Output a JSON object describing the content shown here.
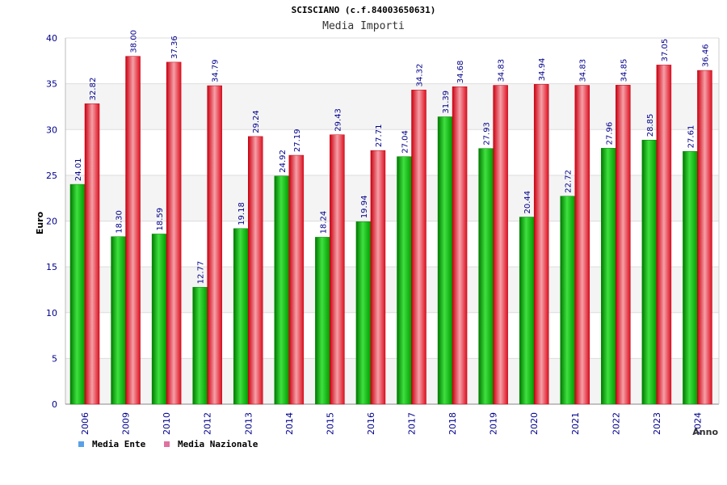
{
  "header": {
    "title": "SCISCIANO (c.f.84003650631)",
    "subtitle": "Media Importi"
  },
  "chart_data": {
    "type": "bar",
    "categories": [
      "2006",
      "2009",
      "2010",
      "2012",
      "2013",
      "2014",
      "2015",
      "2016",
      "2017",
      "2018",
      "2019",
      "2020",
      "2021",
      "2022",
      "2023",
      "2024"
    ],
    "series": [
      {
        "name": "Media Ente",
        "values": [
          24.01,
          18.3,
          18.59,
          12.77,
          19.18,
          24.92,
          18.24,
          19.94,
          27.04,
          31.39,
          27.93,
          20.44,
          22.72,
          27.96,
          28.85,
          27.61
        ],
        "labels": [
          "24.01",
          "18.30",
          "18.59",
          "12.77",
          "19.18",
          "24.92",
          "18.24",
          "19.94",
          "27.04",
          "31.39",
          "27.93",
          "20.44",
          "22.72",
          "27.96",
          "28.85",
          "27.61"
        ]
      },
      {
        "name": "Media Nazionale",
        "values": [
          32.82,
          38.0,
          37.36,
          34.79,
          29.24,
          27.19,
          29.43,
          27.71,
          34.32,
          34.68,
          34.83,
          34.94,
          34.83,
          34.85,
          37.05,
          36.46
        ],
        "labels": [
          "32.82",
          "38.00",
          "37.36",
          "34.79",
          "29.24",
          "27.19",
          "29.43",
          "27.71",
          "34.32",
          "34.68",
          "34.83",
          "34.94",
          "34.83",
          "34.85",
          "37.05",
          "36.46"
        ]
      }
    ],
    "xlabel": "Anno",
    "ylabel": "Euro",
    "ylim": [
      0,
      40
    ],
    "yticks": [
      0,
      5,
      10,
      15,
      20,
      25,
      30,
      35,
      40
    ],
    "grid": true,
    "legend_position": "bottom-left",
    "colors": {
      "ente": "#00b400",
      "nazionale": "#e8202a",
      "axis_text": "#00008b",
      "legend_ente_swatch": "#5aa0e8",
      "legend_nazionale_swatch": "#e070a0"
    }
  }
}
